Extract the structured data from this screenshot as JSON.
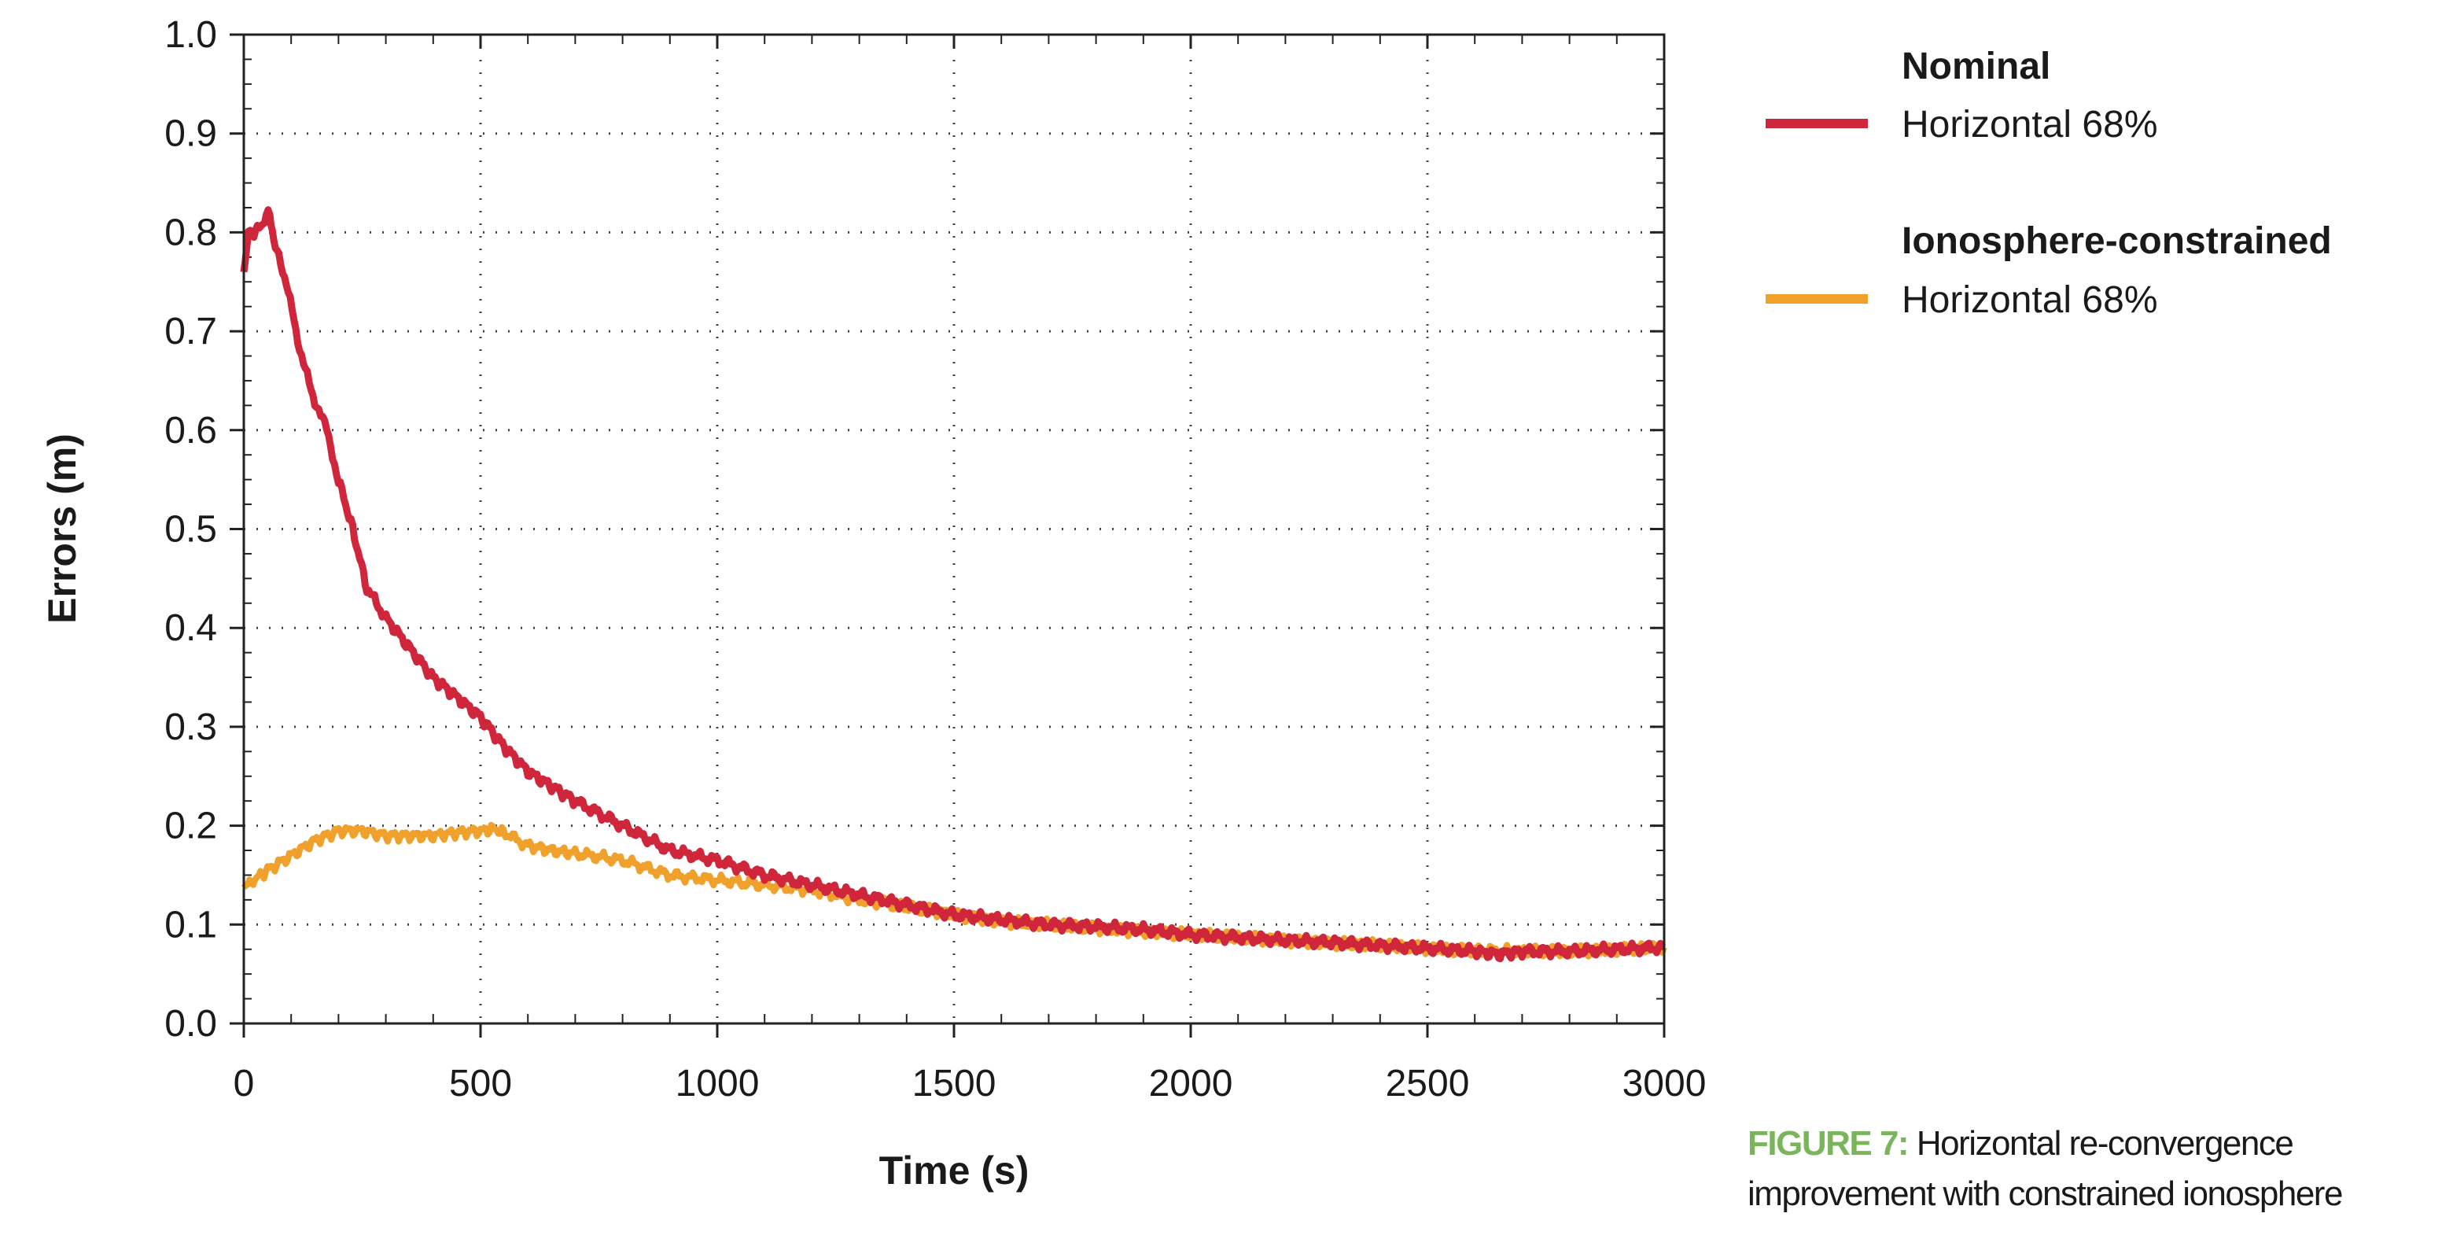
{
  "chart_data": {
    "type": "line",
    "title": "",
    "xlabel": "Time (s)",
    "ylabel": "Errors (m)",
    "xlim": [
      0,
      3000
    ],
    "ylim": [
      0.0,
      1.0
    ],
    "xticks": [
      "0",
      "500",
      "1000",
      "1500",
      "2000",
      "2500",
      "3000"
    ],
    "yticks": [
      "0.0",
      "0.1",
      "0.2",
      "0.3",
      "0.4",
      "0.5",
      "0.6",
      "0.7",
      "0.8",
      "0.9",
      "1.0"
    ],
    "grid": true,
    "legend_position": "right",
    "series": [
      {
        "name": "Horizontal 68%",
        "group": "Nominal",
        "color": "#d0263c",
        "x": [
          0,
          10,
          25,
          40,
          55,
          60,
          70,
          90,
          110,
          130,
          150,
          175,
          200,
          230,
          260,
          300,
          350,
          400,
          450,
          500,
          550,
          600,
          650,
          700,
          800,
          900,
          1000,
          1100,
          1200,
          1300,
          1400,
          1500,
          1600,
          1700,
          1800,
          1900,
          2000,
          2100,
          2200,
          2300,
          2400,
          2500,
          2600,
          2650,
          2700,
          2800,
          2900,
          3000
        ],
        "y": [
          0.76,
          0.8,
          0.8,
          0.81,
          0.82,
          0.8,
          0.78,
          0.75,
          0.7,
          0.66,
          0.63,
          0.6,
          0.55,
          0.5,
          0.44,
          0.41,
          0.38,
          0.35,
          0.33,
          0.31,
          0.28,
          0.255,
          0.24,
          0.225,
          0.2,
          0.175,
          0.165,
          0.15,
          0.14,
          0.13,
          0.12,
          0.11,
          0.105,
          0.1,
          0.098,
          0.095,
          0.09,
          0.087,
          0.084,
          0.082,
          0.079,
          0.076,
          0.073,
          0.07,
          0.073,
          0.073,
          0.075,
          0.077
        ]
      },
      {
        "name": "Horizontal 68%",
        "group": "Ionosphere-constrained",
        "color": "#f0a12c",
        "x": [
          0,
          20,
          50,
          100,
          150,
          200,
          250,
          300,
          350,
          400,
          450,
          500,
          530,
          560,
          600,
          650,
          700,
          800,
          900,
          1000,
          1100,
          1200,
          1300,
          1400,
          1500,
          1600,
          1700,
          1800,
          1900,
          2000,
          2100,
          2200,
          2300,
          2400,
          2500,
          2600,
          2700,
          2800,
          2900,
          3000
        ],
        "y": [
          0.135,
          0.145,
          0.155,
          0.17,
          0.185,
          0.195,
          0.195,
          0.19,
          0.19,
          0.19,
          0.193,
          0.195,
          0.197,
          0.19,
          0.18,
          0.175,
          0.172,
          0.165,
          0.15,
          0.145,
          0.14,
          0.135,
          0.125,
          0.118,
          0.11,
          0.103,
          0.1,
          0.096,
          0.093,
          0.09,
          0.087,
          0.084,
          0.081,
          0.079,
          0.076,
          0.074,
          0.073,
          0.073,
          0.075,
          0.077
        ]
      }
    ]
  },
  "legend": {
    "group1_title": "Nominal",
    "group1_label": "Horizontal 68%",
    "group2_title": "Ionosphere-constrained",
    "group2_label": "Horizontal 68%"
  },
  "caption": {
    "label": "FIGURE 7:",
    "text": "Horizontal re-convergence improvement with constrained ionosphere"
  }
}
